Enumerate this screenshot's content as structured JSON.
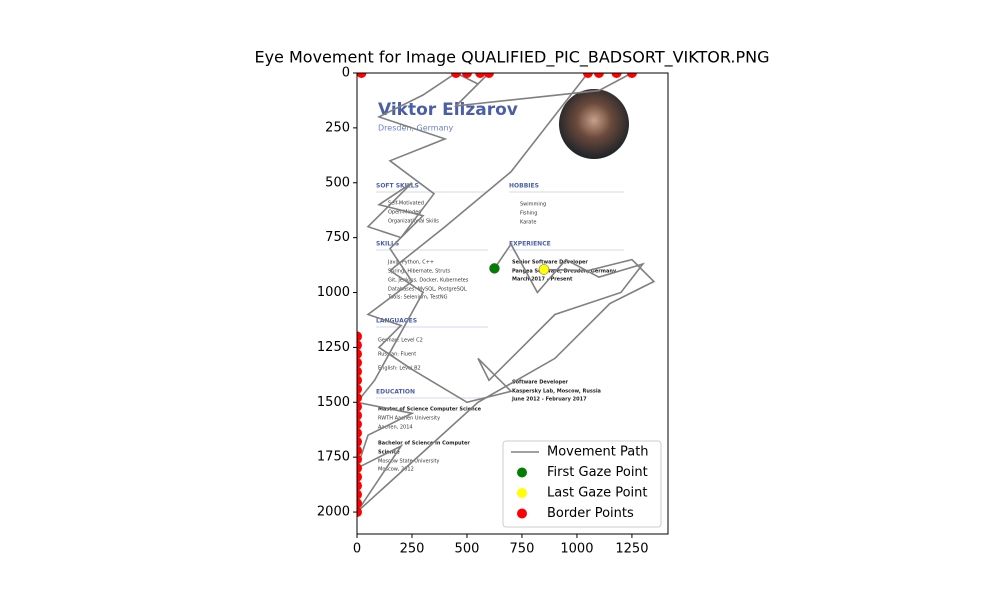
{
  "chart_data": {
    "type": "line",
    "title": "Eye Movement for Image QUALIFIED_PIC_BADSORT_VIKTOR.PNG",
    "xlim": [
      0,
      1414
    ],
    "ylim": [
      2100,
      0
    ],
    "xticks": [
      0,
      250,
      500,
      750,
      1000,
      1250
    ],
    "yticks": [
      0,
      250,
      500,
      750,
      1000,
      1250,
      1500,
      1750,
      2000
    ],
    "legend": "lower right",
    "series": [
      {
        "name": "Movement Path",
        "kind": "line",
        "color": "gray",
        "x": [
          625,
          700,
          820,
          950,
          1100,
          1300,
          1200,
          900,
          750,
          600,
          550,
          700,
          500,
          250,
          100,
          200,
          50,
          250,
          150,
          300,
          100,
          250,
          50,
          200,
          350,
          150,
          400,
          100,
          300,
          450,
          550,
          600,
          450,
          1100,
          1250,
          1050,
          700,
          400,
          150,
          300,
          80,
          0,
          250,
          50,
          0,
          200,
          0,
          550,
          900,
          1150,
          1350,
          1250,
          1050,
          850
        ],
        "y": [
          890,
          780,
          1000,
          850,
          930,
          870,
          1000,
          1100,
          1250,
          1400,
          1300,
          1450,
          1500,
          1350,
          1250,
          1150,
          1100,
          950,
          800,
          650,
          600,
          500,
          700,
          750,
          550,
          400,
          300,
          200,
          100,
          0,
          50,
          0,
          150,
          80,
          0,
          0,
          450,
          700,
          900,
          1000,
          1400,
          1500,
          1550,
          1650,
          1800,
          1700,
          2000,
          1500,
          1300,
          1050,
          950,
          850,
          900,
          895
        ]
      },
      {
        "name": "First Gaze Point",
        "kind": "scatter",
        "color": "green",
        "x": [
          625
        ],
        "y": [
          890
        ]
      },
      {
        "name": "Last Gaze Point",
        "kind": "scatter",
        "color": "yellow",
        "x": [
          850
        ],
        "y": [
          895
        ]
      },
      {
        "name": "Border Points",
        "kind": "scatter",
        "color": "red",
        "x": [
          0,
          0,
          0,
          0,
          0,
          0,
          0,
          0,
          0,
          0,
          0,
          0,
          0,
          0,
          0,
          0,
          0,
          0,
          0,
          0,
          0,
          20,
          450,
          500,
          560,
          600,
          1050,
          1100,
          1180,
          1250
        ],
        "y": [
          1200,
          1240,
          1280,
          1320,
          1360,
          1400,
          1440,
          1480,
          1520,
          1560,
          1600,
          1640,
          1680,
          1720,
          1760,
          1800,
          1840,
          1880,
          1920,
          1960,
          2000,
          0,
          0,
          0,
          0,
          0,
          0,
          0,
          0,
          0
        ]
      }
    ],
    "background_image": {
      "texts": [
        "Viktor Elizarov",
        "Dresden, Germany",
        "SOFT SKILLS",
        "Self-Motivated",
        "Open-Minded",
        "Organizational Skills",
        "HOBBIES",
        "Swimming",
        "Fishing",
        "Karate",
        "SKILLS",
        "Java, Python, C++",
        "Spring, Hibernate, Struts",
        "Git, Jenkins, Docker, Kubernetes",
        "Databases: MySQL, PostgreSQL",
        "Tools: Selenium, TestNG",
        "LANGUAGES",
        "German: Level C2",
        "Russian: Fluent",
        "English: Level B2",
        "EDUCATION",
        "Master of Science Computer Science",
        "RWTH Aachen University",
        "Aachen, 2014",
        "Bachelor of Science in Computer",
        "Science",
        "Moscow State University",
        "Moscow, 2012",
        "EXPERIENCE",
        "Senior Software Developer",
        "Pangea Software, Dresden, Germany",
        "March 2017 - Present",
        "Software Developer",
        "Kaspersky Lab, Moscow, Russia",
        "June 2012 - February 2017"
      ]
    }
  }
}
